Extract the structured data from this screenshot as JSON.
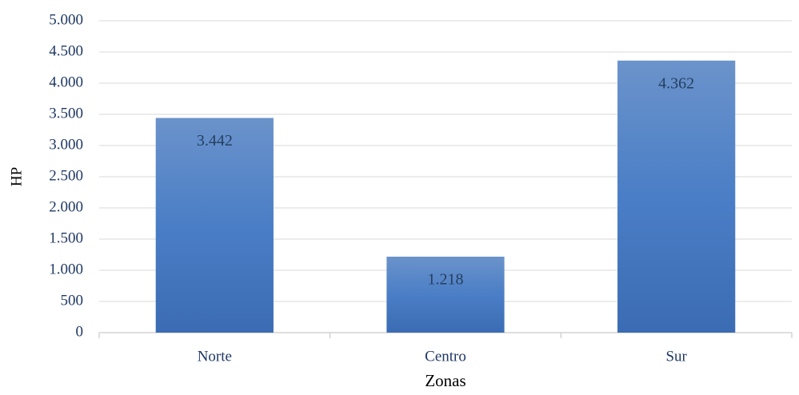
{
  "chart_data": {
    "type": "bar",
    "categories": [
      "Norte",
      "Centro",
      "Sur"
    ],
    "values": [
      3442,
      1218,
      4362
    ],
    "value_labels": [
      "3.442",
      "1.218",
      "4.362"
    ],
    "color": "#4a7cc1",
    "xlabel": "Zonas",
    "ylabel": "HP",
    "ylim": [
      0,
      5000
    ],
    "yticks": [
      0,
      500,
      {
        "value": 1000,
        "label": "1.000"
      },
      {
        "value": 1500,
        "label": "1.500"
      },
      {
        "value": 2000,
        "label": "2.000"
      },
      {
        "value": 2500,
        "label": "2.500"
      },
      {
        "value": 3000,
        "label": "3.000"
      },
      {
        "value": 3500,
        "label": "3.500"
      },
      {
        "value": 4000,
        "label": "4.000"
      },
      {
        "value": 4500,
        "label": "4.500"
      },
      {
        "value": 5000,
        "label": "5.000"
      }
    ],
    "grid": true
  }
}
